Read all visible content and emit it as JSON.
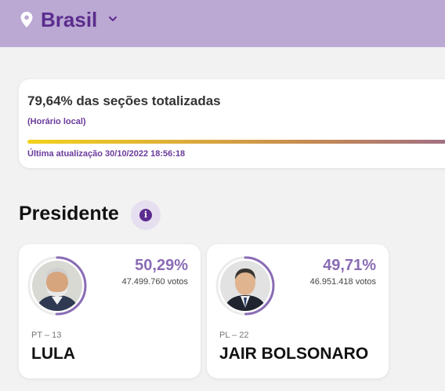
{
  "header": {
    "location": "Brasil",
    "pin_icon": "location-pin-icon",
    "chevron_icon": "chevron-down-icon",
    "background_color": "#bba8d3",
    "accent_color": "#5b2c8e"
  },
  "progress": {
    "title": "79,64% das seções totalizadas",
    "subtitle": "(Horário local)",
    "last_update": "Última atualização 30/10/2022 18:56:18"
  },
  "section": {
    "title": "Presidente",
    "info_icon": "info-icon"
  },
  "candidates": [
    {
      "percent": "50,29%",
      "percent_fraction": 0.5029,
      "votes": "47.499.760 votos",
      "party": "PT – 13",
      "name": "LULA"
    },
    {
      "percent": "49,71%",
      "percent_fraction": 0.4971,
      "votes": "46.951.418 votos",
      "party": "PL – 22",
      "name": "JAIR BOLSONARO"
    }
  ]
}
